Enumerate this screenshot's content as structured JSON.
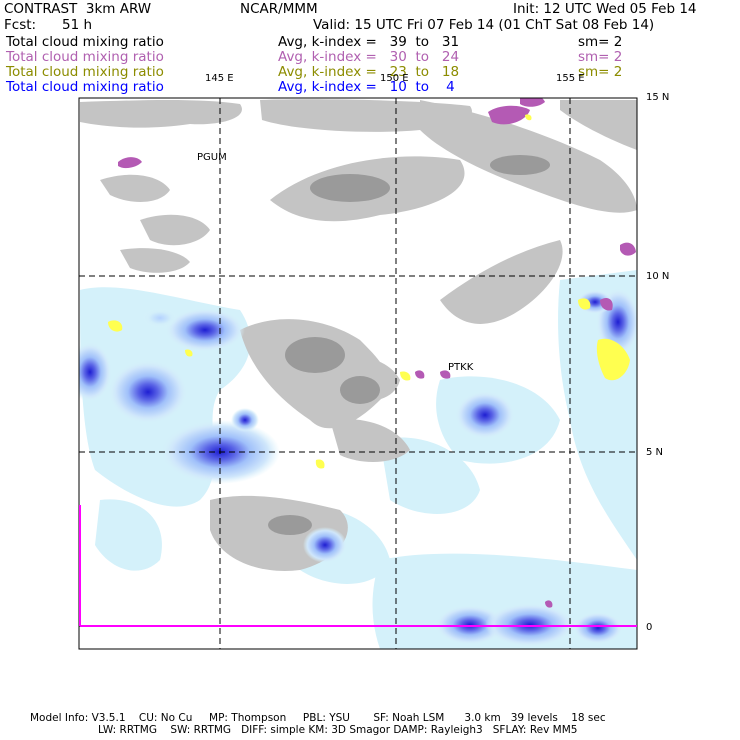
{
  "header": {
    "model": "CONTRAST  3km ARW",
    "org": "NCAR/MMM",
    "init": "Init: 12 UTC Wed 05 Feb 14",
    "fcst_label": "Fcst:",
    "fcst_value": "51 h",
    "valid": "Valid: 15 UTC Fri 07 Feb 14 (01 ChT Sat 08 Feb 14)"
  },
  "fields": [
    {
      "name": "Total cloud mixing ratio",
      "range": "Avg, k-index =   39  to   31",
      "sm": "sm= 2",
      "color": "#000000"
    },
    {
      "name": "Total cloud mixing ratio",
      "range": "Avg, k-index =   30  to   24",
      "sm": "sm= 2",
      "color": "#b060b0"
    },
    {
      "name": "Total cloud mixing ratio",
      "range": "Avg, k-index =   23  to   18",
      "sm": "sm= 2",
      "color": "#8c8c00"
    },
    {
      "name": "Total cloud mixing ratio",
      "range": "Avg, k-index =   10  to    4",
      "sm": "",
      "color": "#0000ff"
    }
  ],
  "map": {
    "lon_labels": [
      "145 E",
      "150 E",
      "155 E"
    ],
    "lat_labels": [
      "15 N",
      "10 N",
      "5 N",
      "0"
    ],
    "stations": [
      "PGUM",
      "PTKK"
    ],
    "colors": {
      "gray_low": "#c8c8c8",
      "gray_high": "#969696",
      "magenta": "#b45ab4",
      "yellow": "#ffff50",
      "blue_light": "#d2f0fa",
      "blue_mid": "#a0c8ff",
      "blue_dark": "#2828dc",
      "frame_line": "#ff00ff"
    }
  },
  "footer": {
    "line1": "Model Info: V3.5.1    CU: No Cu     MP: Thompson     PBL: YSU       SF: Noah LSM      3.0 km   39 levels    18 sec",
    "line2": "LW: RRTMG    SW: RRTMG   DIFF: simple KM: 3D Smagor DAMP: Rayleigh3   SFLAY: Rev MM5"
  }
}
